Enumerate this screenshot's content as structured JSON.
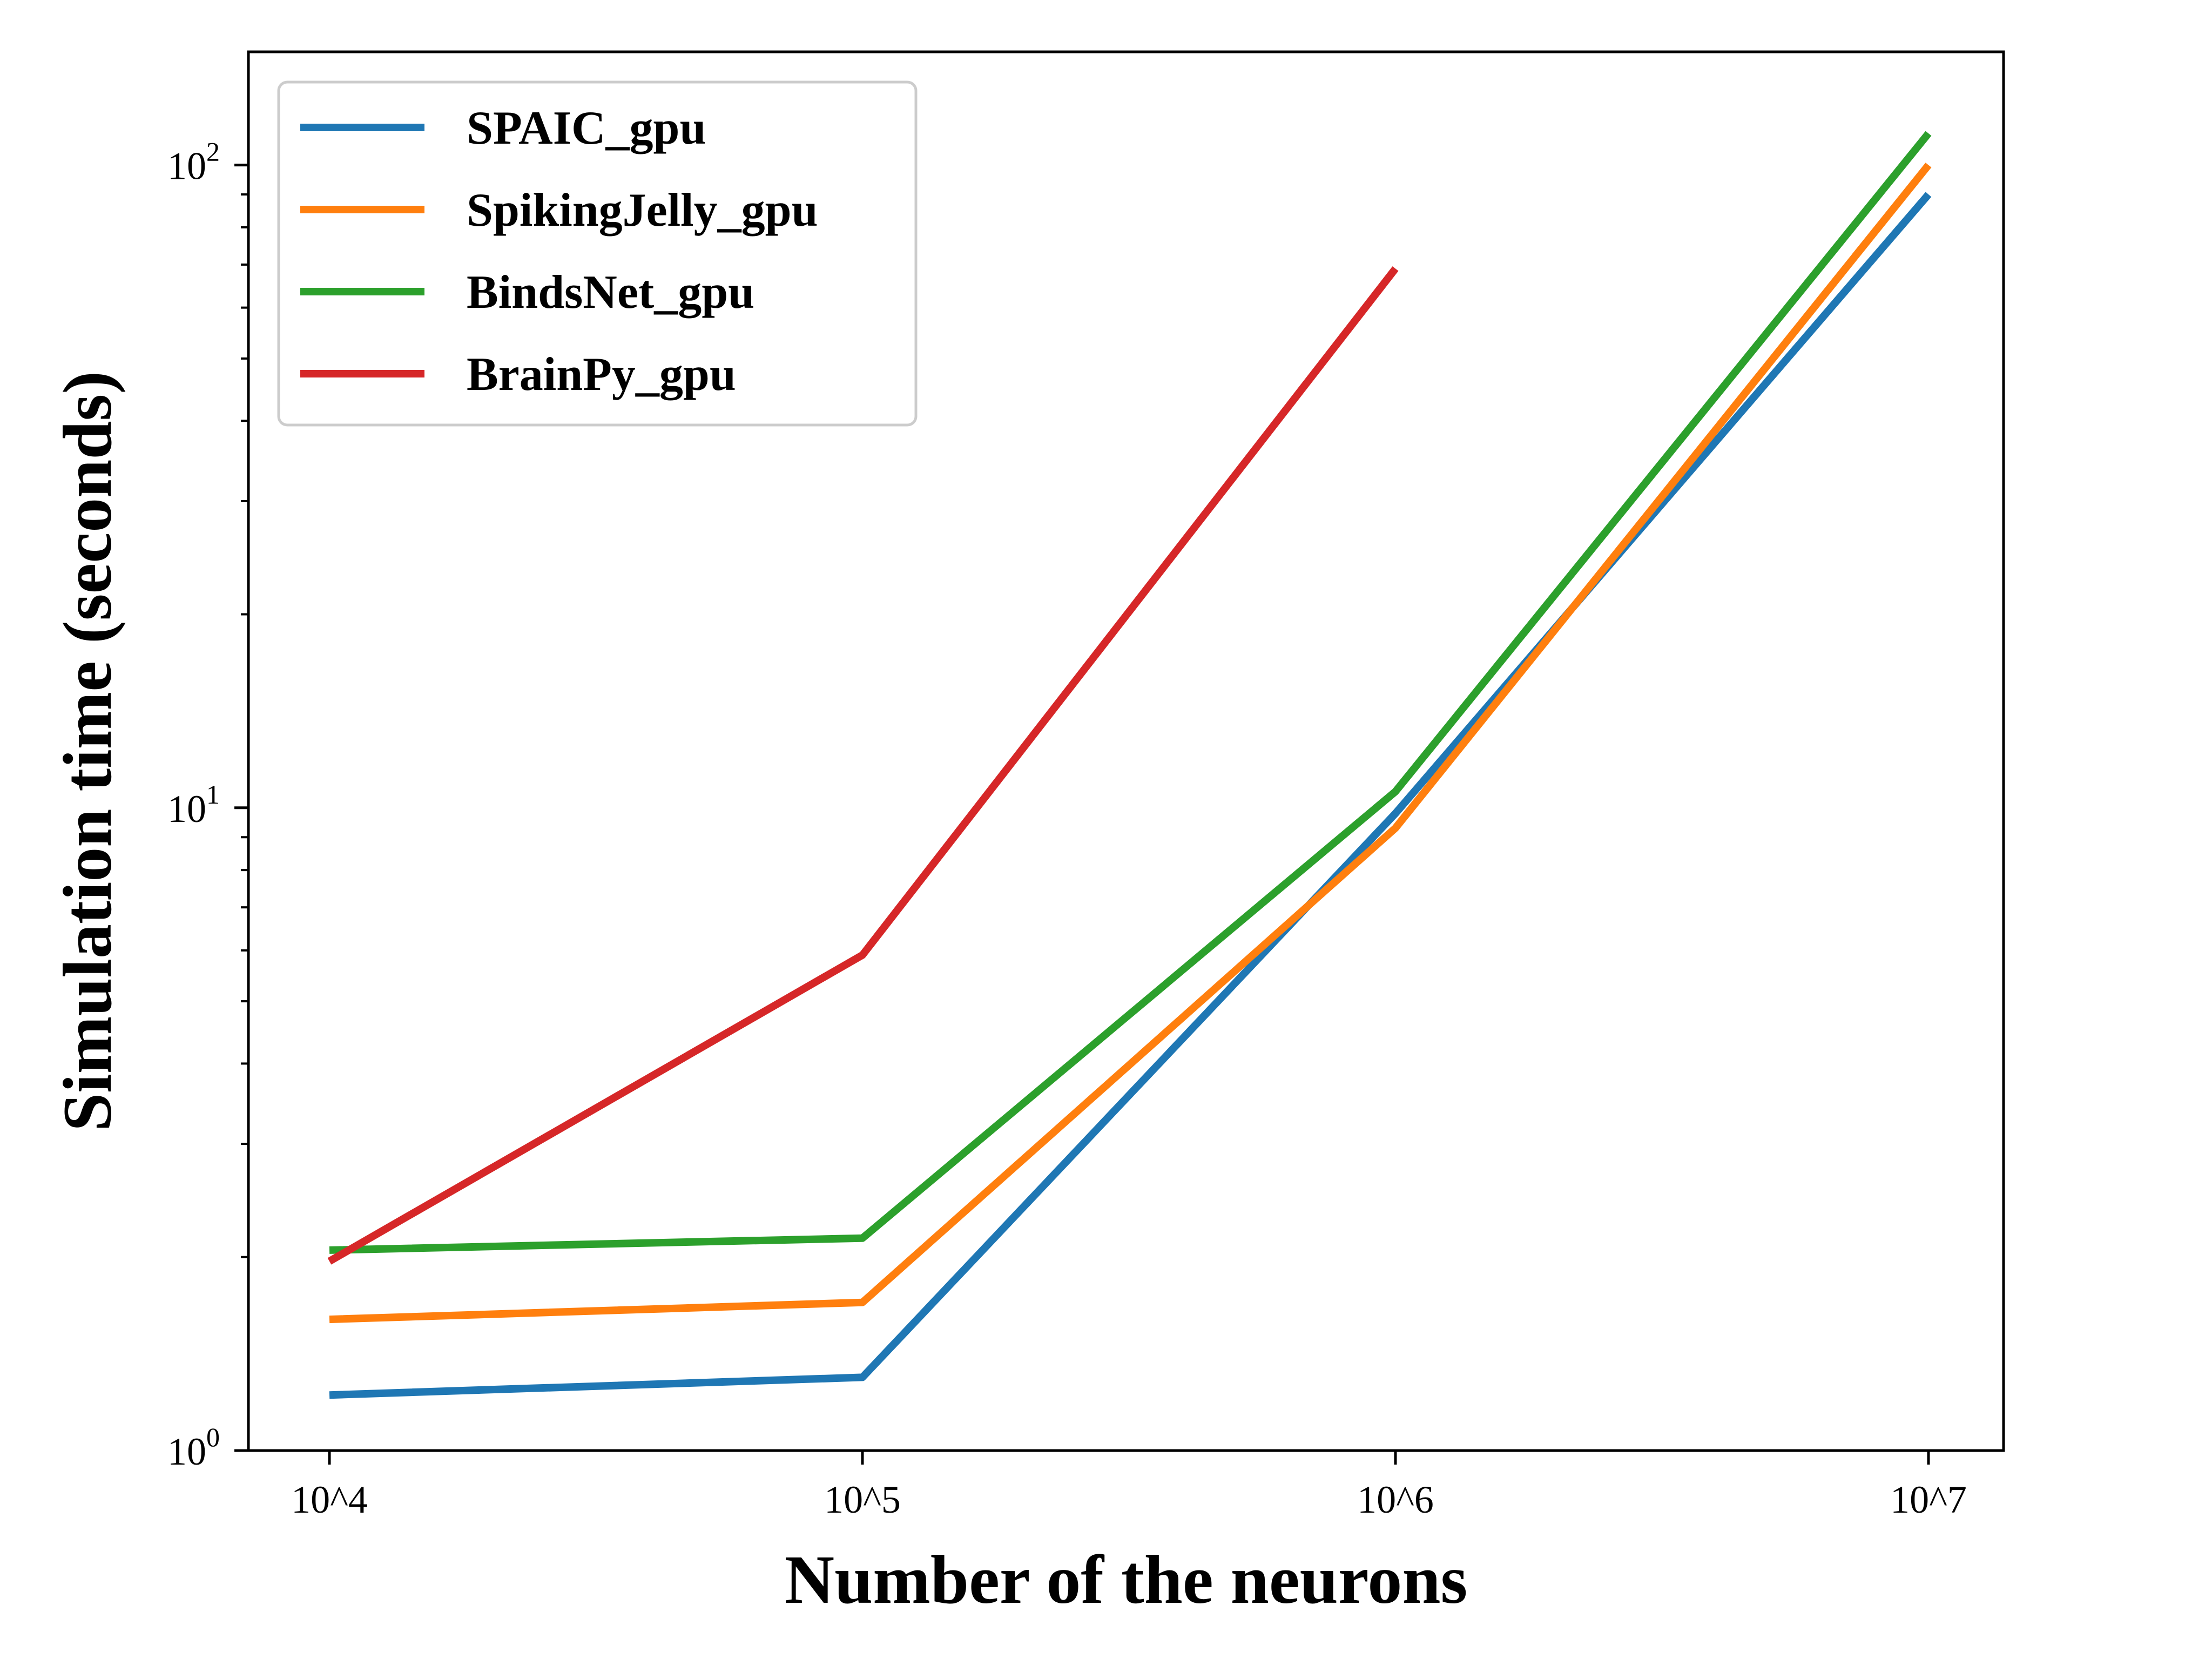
{
  "chart_data": {
    "type": "line",
    "x_ticks": [
      "10^4",
      "10^5",
      "10^6",
      "10^7"
    ],
    "y_scale": "log",
    "ylim": [
      1,
      150
    ],
    "y_ticks": [
      {
        "value": 1,
        "base": "10",
        "exp": "0"
      },
      {
        "value": 10,
        "base": "10",
        "exp": "1"
      },
      {
        "value": 100,
        "base": "10",
        "exp": "2"
      }
    ],
    "xlabel": "Number of the neurons",
    "ylabel": "Simulation time (seconds)",
    "grid": false,
    "legend_position": "top-left",
    "series": [
      {
        "name": "SPAIC_gpu",
        "color": "#1f77b4",
        "values": [
          1.22,
          1.3,
          9.8,
          90
        ]
      },
      {
        "name": "SpikingJelly_gpu",
        "color": "#ff7f0e",
        "values": [
          1.6,
          1.7,
          9.3,
          100
        ]
      },
      {
        "name": "BindsNet_gpu",
        "color": "#2ca02c",
        "values": [
          2.05,
          2.14,
          10.6,
          112
        ]
      },
      {
        "name": "BrainPy_gpu",
        "color": "#d62728",
        "values": [
          1.97,
          5.9,
          69,
          null
        ]
      }
    ]
  }
}
